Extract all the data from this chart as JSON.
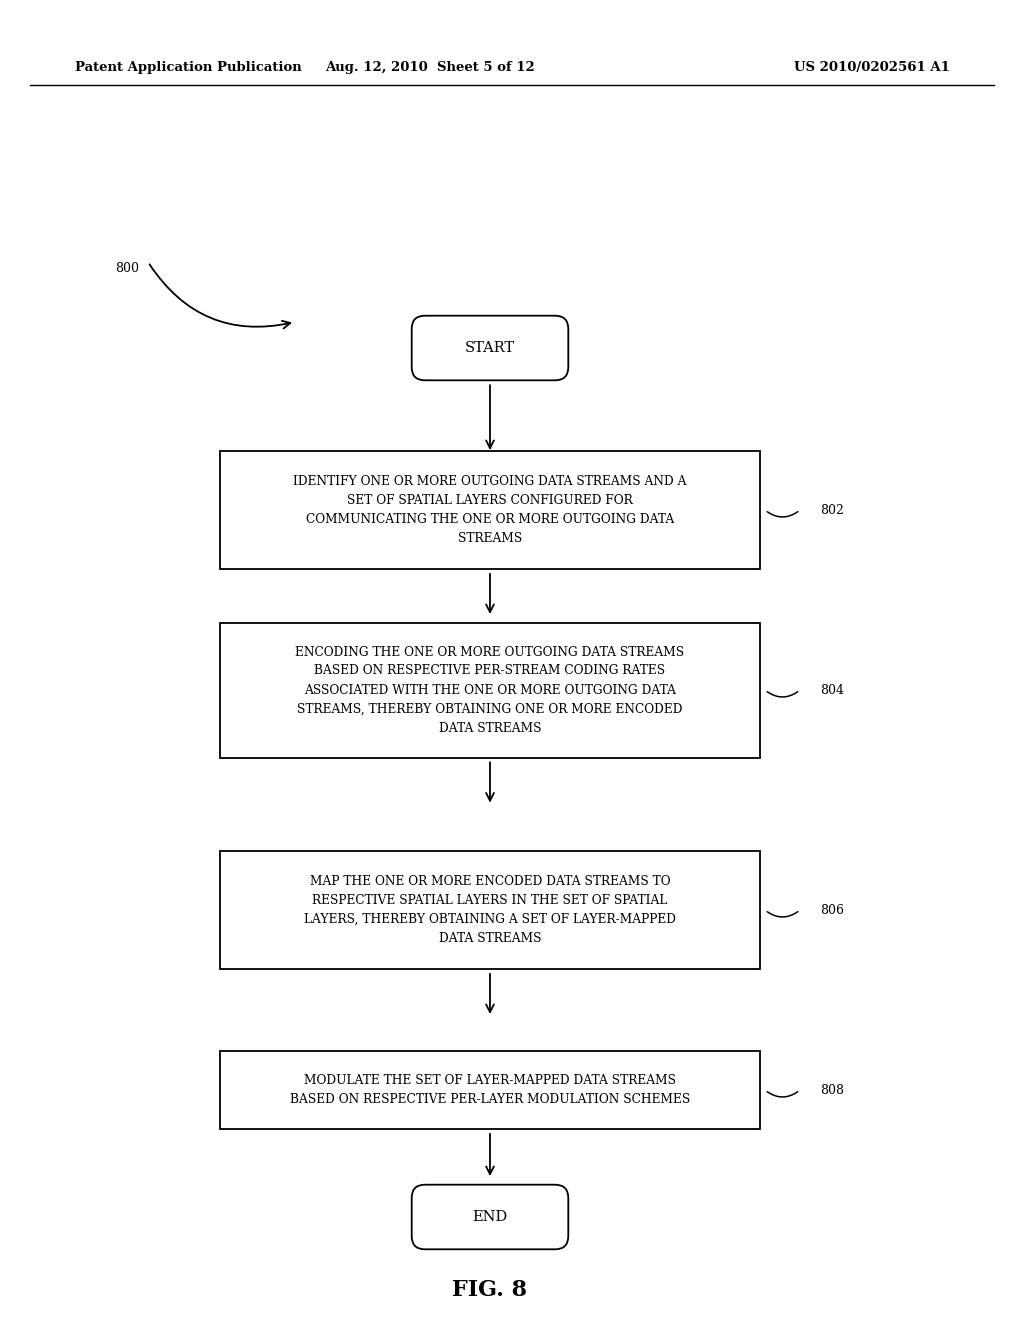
{
  "background_color": "#ffffff",
  "header_left": "Patent Application Publication",
  "header_center": "Aug. 12, 2010  Sheet 5 of 12",
  "header_right": "US 2010/0202561 A1",
  "fig_number": "800",
  "title": "FIG. 8",
  "start_text": "START",
  "end_text": "END",
  "box802_text": "IDENTIFY ONE OR MORE OUTGOING DATA STREAMS AND A\nSET OF SPATIAL LAYERS CONFIGURED FOR\nCOMMUNICATING THE ONE OR MORE OUTGOING DATA\nSTREAMS",
  "box804_text": "ENCODING THE ONE OR MORE OUTGOING DATA STREAMS\nBASED ON RESPECTIVE PER-STREAM CODING RATES\nASSOCIATED WITH THE ONE OR MORE OUTGOING DATA\nSTREAMS, THEREBY OBTAINING ONE OR MORE ENCODED\nDATA STREAMS",
  "box806_text": "MAP THE ONE OR MORE ENCODED DATA STREAMS TO\nRESPECTIVE SPATIAL LAYERS IN THE SET OF SPATIAL\nLAYERS, THEREBY OBTAINING A SET OF LAYER-MAPPED\nDATA STREAMS",
  "box808_text": "MODULATE THE SET OF LAYER-MAPPED DATA STREAMS\nBASED ON RESPECTIVE PER-LAYER MODULATION SCHEMES",
  "label802": "802",
  "label804": "804",
  "label806": "806",
  "label808": "808"
}
